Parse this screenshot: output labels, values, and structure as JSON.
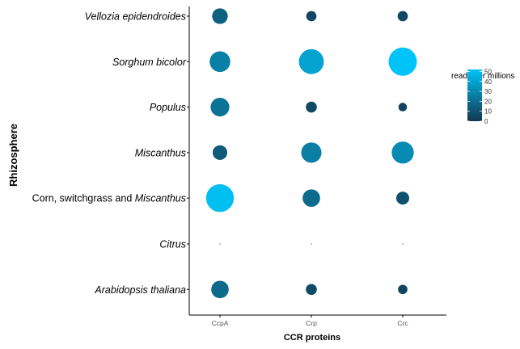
{
  "chart_data": {
    "type": "scatter",
    "subtype": "bubble",
    "xlabel": "CCR proteins",
    "ylabel": "Rhizosphere",
    "x_categories": [
      "CcpA",
      "Crp",
      "Crc"
    ],
    "y_categories": [
      {
        "segments": [
          {
            "text": "Vellozia epidendroides",
            "italic": true
          }
        ]
      },
      {
        "segments": [
          {
            "text": "Sorghum bicolor",
            "italic": true
          }
        ]
      },
      {
        "segments": [
          {
            "text": "Populus",
            "italic": true
          }
        ]
      },
      {
        "segments": [
          {
            "text": "Miscanthus",
            "italic": true
          }
        ]
      },
      {
        "segments": [
          {
            "text": "Corn, switchgrass and ",
            "italic": false
          },
          {
            "text": "Miscanthus",
            "italic": true
          }
        ]
      },
      {
        "segments": [
          {
            "text": "Citrus",
            "italic": true
          }
        ]
      },
      {
        "segments": [
          {
            "text": "Arabidopsis thaliana",
            "italic": true
          }
        ]
      }
    ],
    "points": [
      {
        "x": "CcpA",
        "y": 0,
        "value": 15
      },
      {
        "x": "Crp",
        "y": 0,
        "value": 6
      },
      {
        "x": "Crc",
        "y": 0,
        "value": 6
      },
      {
        "x": "CcpA",
        "y": 1,
        "value": 27
      },
      {
        "x": "Crp",
        "y": 1,
        "value": 40
      },
      {
        "x": "Crc",
        "y": 1,
        "value": 52
      },
      {
        "x": "CcpA",
        "y": 2,
        "value": 22
      },
      {
        "x": "Crp",
        "y": 2,
        "value": 7
      },
      {
        "x": "Crc",
        "y": 2,
        "value": 4
      },
      {
        "x": "CcpA",
        "y": 3,
        "value": 13
      },
      {
        "x": "Crp",
        "y": 3,
        "value": 26
      },
      {
        "x": "Crc",
        "y": 3,
        "value": 31
      },
      {
        "x": "CcpA",
        "y": 4,
        "value": 50
      },
      {
        "x": "Crp",
        "y": 4,
        "value": 19
      },
      {
        "x": "Crc",
        "y": 4,
        "value": 10
      },
      {
        "x": "CcpA",
        "y": 5,
        "value": 0
      },
      {
        "x": "Crp",
        "y": 5,
        "value": 0
      },
      {
        "x": "Crc",
        "y": 5,
        "value": 0
      },
      {
        "x": "CcpA",
        "y": 6,
        "value": 19
      },
      {
        "x": "Crp",
        "y": 6,
        "value": 7
      },
      {
        "x": "Crc",
        "y": 6,
        "value": 5
      }
    ],
    "legend": {
      "title": "reads per millions",
      "ticks": [
        0,
        10,
        20,
        30,
        40,
        50
      ],
      "range": [
        0,
        52
      ],
      "placement": "right",
      "color_low": "#13374f",
      "color_high": "#00c4f7"
    },
    "grid": false
  }
}
